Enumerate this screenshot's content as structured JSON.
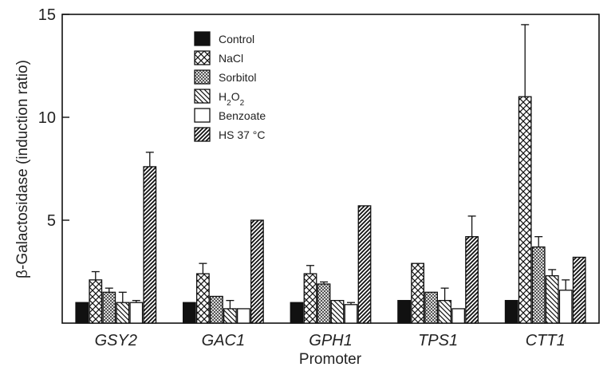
{
  "chart_data": {
    "type": "bar",
    "xlabel": "Promoter",
    "ylabel": "β-Galactosidase (induction ratio)",
    "ylim": [
      0,
      15
    ],
    "yticks": [
      5,
      10,
      15
    ],
    "categories": [
      "GSY2",
      "GAC1",
      "GPH1",
      "TPS1",
      "CTT1"
    ],
    "legend_position": "top-left",
    "series": [
      {
        "name": "Control",
        "pattern": "solid",
        "values": [
          1.0,
          1.0,
          1.0,
          1.1,
          1.1
        ],
        "errors": [
          0,
          0,
          0,
          0,
          0
        ]
      },
      {
        "name": "NaCl",
        "pattern": "crosshatch",
        "values": [
          2.1,
          2.4,
          2.4,
          2.9,
          11.0
        ],
        "errors": [
          0.4,
          0.5,
          0.4,
          0,
          3.5
        ]
      },
      {
        "name": "Sorbitol",
        "pattern": "dotted",
        "values": [
          1.5,
          1.3,
          1.9,
          1.5,
          3.7
        ],
        "errors": [
          0.2,
          0,
          0.1,
          0,
          0.5
        ]
      },
      {
        "name": "H2O2",
        "pattern": "hatch-left",
        "values": [
          1.0,
          0.7,
          1.1,
          1.1,
          2.3
        ],
        "errors": [
          0.5,
          0.4,
          0,
          0.6,
          0.3
        ]
      },
      {
        "name": "Benzoate",
        "pattern": "white",
        "values": [
          1.0,
          0.7,
          0.9,
          0.7,
          1.6
        ],
        "errors": [
          0.1,
          0,
          0.1,
          0,
          0.5
        ]
      },
      {
        "name": "HS 37 °C",
        "pattern": "hatch-right",
        "values": [
          7.6,
          5.0,
          5.7,
          4.2,
          3.2
        ],
        "errors": [
          0.7,
          0,
          0,
          1.0,
          0
        ]
      }
    ]
  }
}
